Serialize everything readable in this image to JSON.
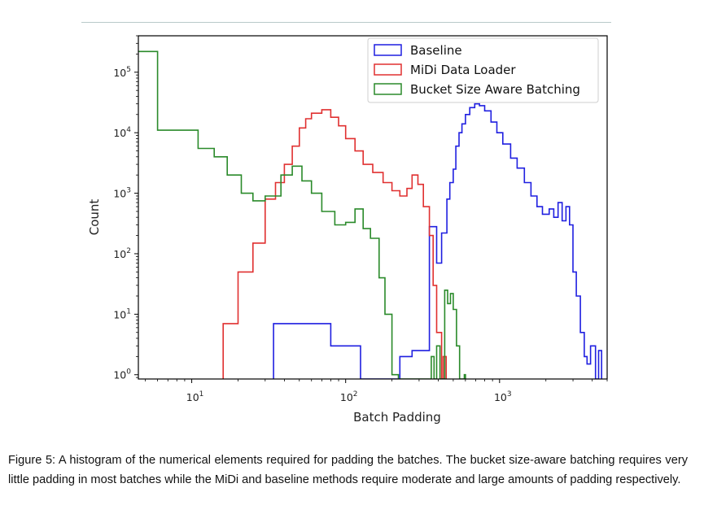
{
  "chart_data": {
    "type": "histogram",
    "xlabel": "Batch Padding",
    "ylabel": "Count",
    "x_scale": "log",
    "y_scale": "log",
    "xlim": [
      4.5,
      5000
    ],
    "ylim": [
      0.85,
      400000
    ],
    "xticks": [
      {
        "value": 10,
        "base": "10",
        "exp": "1"
      },
      {
        "value": 100,
        "base": "10",
        "exp": "2"
      },
      {
        "value": 1000,
        "base": "10",
        "exp": "3"
      }
    ],
    "yticks": [
      {
        "value": 1,
        "base": "10",
        "exp": "0"
      },
      {
        "value": 10,
        "base": "10",
        "exp": "1"
      },
      {
        "value": 100,
        "base": "10",
        "exp": "2"
      },
      {
        "value": 1000,
        "base": "10",
        "exp": "3"
      },
      {
        "value": 10000,
        "base": "10",
        "exp": "4"
      },
      {
        "value": 100000,
        "base": "10",
        "exp": "5"
      }
    ],
    "legend": {
      "placement": "top-right"
    },
    "series": [
      {
        "name": "Baseline",
        "color": "#1f1fe0",
        "points": [
          [
            34,
            0.85
          ],
          [
            34,
            7
          ],
          [
            80,
            7
          ],
          [
            80,
            3
          ],
          [
            125,
            3
          ],
          [
            125,
            0.85
          ],
          [
            225,
            0.85
          ],
          [
            225,
            2
          ],
          [
            270,
            2
          ],
          [
            270,
            2.5
          ],
          [
            350,
            2.5
          ],
          [
            350,
            280
          ],
          [
            390,
            280
          ],
          [
            390,
            70
          ],
          [
            420,
            70
          ],
          [
            420,
            220
          ],
          [
            455,
            220
          ],
          [
            455,
            800
          ],
          [
            475,
            800
          ],
          [
            475,
            1500
          ],
          [
            500,
            1500
          ],
          [
            500,
            2500
          ],
          [
            520,
            2500
          ],
          [
            520,
            6000
          ],
          [
            545,
            6000
          ],
          [
            545,
            10000
          ],
          [
            570,
            10000
          ],
          [
            570,
            14000
          ],
          [
            600,
            14000
          ],
          [
            600,
            20000
          ],
          [
            640,
            20000
          ],
          [
            640,
            26000
          ],
          [
            690,
            26000
          ],
          [
            690,
            30000
          ],
          [
            740,
            30000
          ],
          [
            740,
            28000
          ],
          [
            800,
            28000
          ],
          [
            800,
            23000
          ],
          [
            880,
            23000
          ],
          [
            880,
            15000
          ],
          [
            960,
            15000
          ],
          [
            960,
            10000
          ],
          [
            1050,
            10000
          ],
          [
            1050,
            6500
          ],
          [
            1180,
            6500
          ],
          [
            1180,
            3800
          ],
          [
            1300,
            3800
          ],
          [
            1300,
            2600
          ],
          [
            1450,
            2600
          ],
          [
            1450,
            1500
          ],
          [
            1600,
            1500
          ],
          [
            1600,
            900
          ],
          [
            1750,
            900
          ],
          [
            1750,
            600
          ],
          [
            1900,
            600
          ],
          [
            1900,
            450
          ],
          [
            2100,
            450
          ],
          [
            2100,
            550
          ],
          [
            2250,
            550
          ],
          [
            2250,
            400
          ],
          [
            2400,
            400
          ],
          [
            2400,
            700
          ],
          [
            2550,
            700
          ],
          [
            2550,
            350
          ],
          [
            2700,
            350
          ],
          [
            2700,
            600
          ],
          [
            2850,
            600
          ],
          [
            2850,
            300
          ],
          [
            3000,
            300
          ],
          [
            3000,
            50
          ],
          [
            3150,
            50
          ],
          [
            3150,
            20
          ],
          [
            3350,
            20
          ],
          [
            3350,
            5
          ],
          [
            3550,
            5
          ],
          [
            3550,
            2
          ],
          [
            3700,
            2
          ],
          [
            3700,
            1.5
          ],
          [
            3900,
            1.5
          ],
          [
            3900,
            3
          ],
          [
            4200,
            3
          ],
          [
            4200,
            0.85
          ],
          [
            4400,
            0.85
          ],
          [
            4400,
            2.5
          ],
          [
            4600,
            2.5
          ],
          [
            4600,
            0.85
          ]
        ]
      },
      {
        "name": "MiDi Data Loader",
        "color": "#e03030",
        "points": [
          [
            16,
            0.85
          ],
          [
            16,
            7
          ],
          [
            20,
            7
          ],
          [
            20,
            50
          ],
          [
            25,
            50
          ],
          [
            25,
            150
          ],
          [
            30,
            150
          ],
          [
            30,
            800
          ],
          [
            35,
            800
          ],
          [
            35,
            1500
          ],
          [
            40,
            1500
          ],
          [
            40,
            3000
          ],
          [
            45,
            3000
          ],
          [
            45,
            6000
          ],
          [
            50,
            6000
          ],
          [
            50,
            12000
          ],
          [
            55,
            12000
          ],
          [
            55,
            17000
          ],
          [
            60,
            17000
          ],
          [
            60,
            21000
          ],
          [
            70,
            21000
          ],
          [
            70,
            24000
          ],
          [
            80,
            24000
          ],
          [
            80,
            18000
          ],
          [
            90,
            18000
          ],
          [
            90,
            13000
          ],
          [
            100,
            13000
          ],
          [
            100,
            8000
          ],
          [
            115,
            8000
          ],
          [
            115,
            5000
          ],
          [
            130,
            5000
          ],
          [
            130,
            3000
          ],
          [
            150,
            3000
          ],
          [
            150,
            2200
          ],
          [
            175,
            2200
          ],
          [
            175,
            1500
          ],
          [
            200,
            1500
          ],
          [
            200,
            1100
          ],
          [
            225,
            1100
          ],
          [
            225,
            900
          ],
          [
            250,
            900
          ],
          [
            250,
            1200
          ],
          [
            270,
            1200
          ],
          [
            270,
            2000
          ],
          [
            295,
            2000
          ],
          [
            295,
            1400
          ],
          [
            320,
            1400
          ],
          [
            320,
            600
          ],
          [
            350,
            600
          ],
          [
            350,
            200
          ],
          [
            370,
            200
          ],
          [
            370,
            30
          ],
          [
            390,
            30
          ],
          [
            390,
            5
          ],
          [
            420,
            5
          ],
          [
            420,
            0.85
          ],
          [
            430,
            0.85
          ],
          [
            430,
            2
          ],
          [
            450,
            2
          ],
          [
            450,
            0.85
          ]
        ]
      },
      {
        "name": "Bucket Size Aware Batching",
        "color": "#2a8a2a",
        "points": [
          [
            4.5,
            220000
          ],
          [
            6,
            220000
          ],
          [
            6,
            11000
          ],
          [
            11,
            11000
          ],
          [
            11,
            5500
          ],
          [
            14,
            5500
          ],
          [
            14,
            4000
          ],
          [
            17,
            4000
          ],
          [
            17,
            2000
          ],
          [
            21,
            2000
          ],
          [
            21,
            1000
          ],
          [
            25,
            1000
          ],
          [
            25,
            750
          ],
          [
            30,
            750
          ],
          [
            30,
            900
          ],
          [
            38,
            900
          ],
          [
            38,
            2000
          ],
          [
            45,
            2000
          ],
          [
            45,
            2800
          ],
          [
            52,
            2800
          ],
          [
            52,
            1600
          ],
          [
            60,
            1600
          ],
          [
            60,
            1000
          ],
          [
            70,
            1000
          ],
          [
            70,
            500
          ],
          [
            85,
            500
          ],
          [
            85,
            300
          ],
          [
            100,
            300
          ],
          [
            100,
            330
          ],
          [
            115,
            330
          ],
          [
            115,
            550
          ],
          [
            130,
            550
          ],
          [
            130,
            260
          ],
          [
            145,
            260
          ],
          [
            145,
            180
          ],
          [
            165,
            180
          ],
          [
            165,
            40
          ],
          [
            180,
            40
          ],
          [
            180,
            10
          ],
          [
            200,
            10
          ],
          [
            200,
            1
          ],
          [
            220,
            1
          ],
          [
            220,
            0.85
          ],
          [
            360,
            0.85
          ],
          [
            360,
            2
          ],
          [
            375,
            2
          ],
          [
            375,
            0.85
          ],
          [
            390,
            0.85
          ],
          [
            390,
            3
          ],
          [
            410,
            3
          ],
          [
            410,
            0.85
          ],
          [
            440,
            0.85
          ],
          [
            440,
            25
          ],
          [
            460,
            25
          ],
          [
            460,
            15
          ],
          [
            480,
            15
          ],
          [
            480,
            22
          ],
          [
            500,
            22
          ],
          [
            500,
            12
          ],
          [
            525,
            12
          ],
          [
            525,
            3
          ],
          [
            550,
            3
          ],
          [
            550,
            0.85
          ],
          [
            590,
            0.85
          ],
          [
            590,
            1
          ],
          [
            600,
            1
          ],
          [
            600,
            0.85
          ]
        ]
      }
    ]
  },
  "caption": "Figure 5: A histogram of the numerical elements required for padding the batches. The bucket size-aware batching requires very little padding in most batches while the MiDi and baseline methods require moderate and large amounts of padding respectively."
}
